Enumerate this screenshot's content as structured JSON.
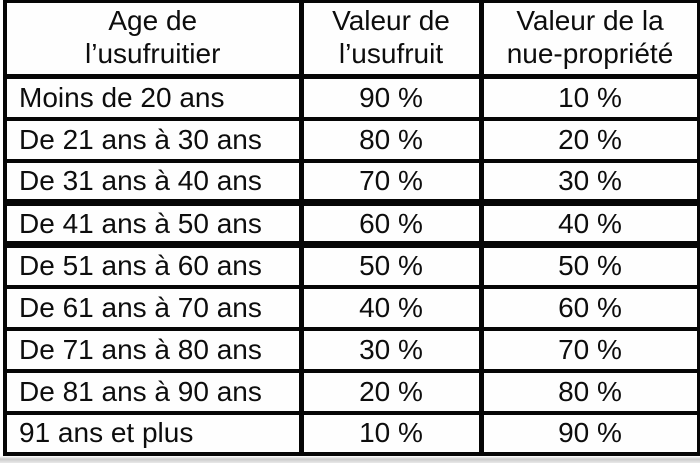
{
  "colors": {
    "border": "#060606",
    "cell_background": "#fefefe",
    "text": "#0d0d0d",
    "bottom_strip": "#cccccc"
  },
  "table": {
    "headers": [
      {
        "label": "Age de\nl’usufruitier"
      },
      {
        "label": "Valeur de\nl’usufruit"
      },
      {
        "label": "Valeur de la\nnue-propriété"
      }
    ],
    "rows": [
      {
        "age": "Moins de 20 ans",
        "usufruit": "90 %",
        "nue_propriete": "10 %"
      },
      {
        "age": "De 21 ans à 30 ans",
        "usufruit": "80 %",
        "nue_propriete": "20 %"
      },
      {
        "age": "De 31 ans à 40 ans",
        "usufruit": "70 %",
        "nue_propriete": "30 %"
      },
      {
        "age": "De 41 ans à 50 ans",
        "usufruit": "60 %",
        "nue_propriete": "40 %"
      },
      {
        "age": "De 51 ans à 60 ans",
        "usufruit": "50 %",
        "nue_propriete": "50 %"
      },
      {
        "age": "De 61 ans à 70 ans",
        "usufruit": "40 %",
        "nue_propriete": "60 %"
      },
      {
        "age": "De 71 ans à 80 ans",
        "usufruit": "30 %",
        "nue_propriete": "70 %"
      },
      {
        "age": "De 81 ans à 90 ans",
        "usufruit": "20 %",
        "nue_propriete": "80 %"
      },
      {
        "age": "91 ans et plus",
        "usufruit": "10 %",
        "nue_propriete": "90 %"
      }
    ]
  }
}
